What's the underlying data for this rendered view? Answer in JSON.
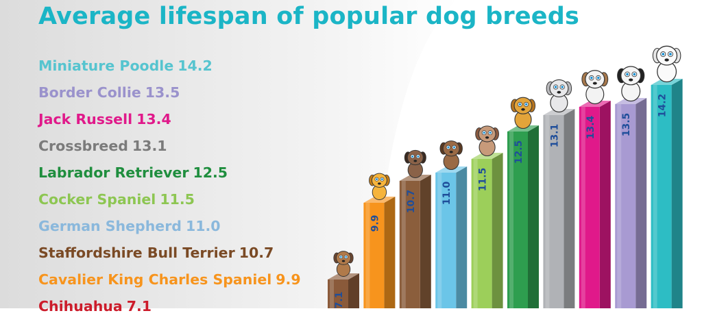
{
  "title": "Average lifespan of popular dog breeds",
  "colors": {
    "title": "#1bb5c6",
    "background": "#e6e6e6"
  },
  "chart_data": {
    "type": "bar",
    "title": "Average lifespan of popular dog breeds",
    "categories": [
      "Chihuahua",
      "Cavalier King Charles Spaniel",
      "Staffordshire Bull Terrier",
      "German Shepherd",
      "Cocker Spaniel",
      "Labrador Retriever",
      "Crossbreed",
      "Jack Russell",
      "Border Collie",
      "Miniature Poodle"
    ],
    "values": [
      7.1,
      9.9,
      10.7,
      11.0,
      11.5,
      12.5,
      13.1,
      13.4,
      13.5,
      14.2
    ],
    "value_labels": [
      "7.1",
      "9.9",
      "10.7",
      "11.0",
      "11.5",
      "12.5",
      "13.1",
      "13.4",
      "13.5",
      "14.2"
    ],
    "bar_colors": [
      "#8a5a3a",
      "#f7941d",
      "#8b5e3c",
      "#6bc5e8",
      "#9ccf5a",
      "#2e9e4f",
      "#b0b2b6",
      "#e0198a",
      "#a89ad2",
      "#2dbdc4"
    ],
    "legend_colors": [
      "#cc1c2b",
      "#f7941d",
      "#7a4a25",
      "#8ab8dc",
      "#8dc652",
      "#1f8e3e",
      "#7b7b7b",
      "#e0198a",
      "#9a92cc",
      "#56c4cf"
    ],
    "label_color": "#1f4e9a",
    "legend_order": "descending",
    "xlabel": "",
    "ylabel": ""
  }
}
